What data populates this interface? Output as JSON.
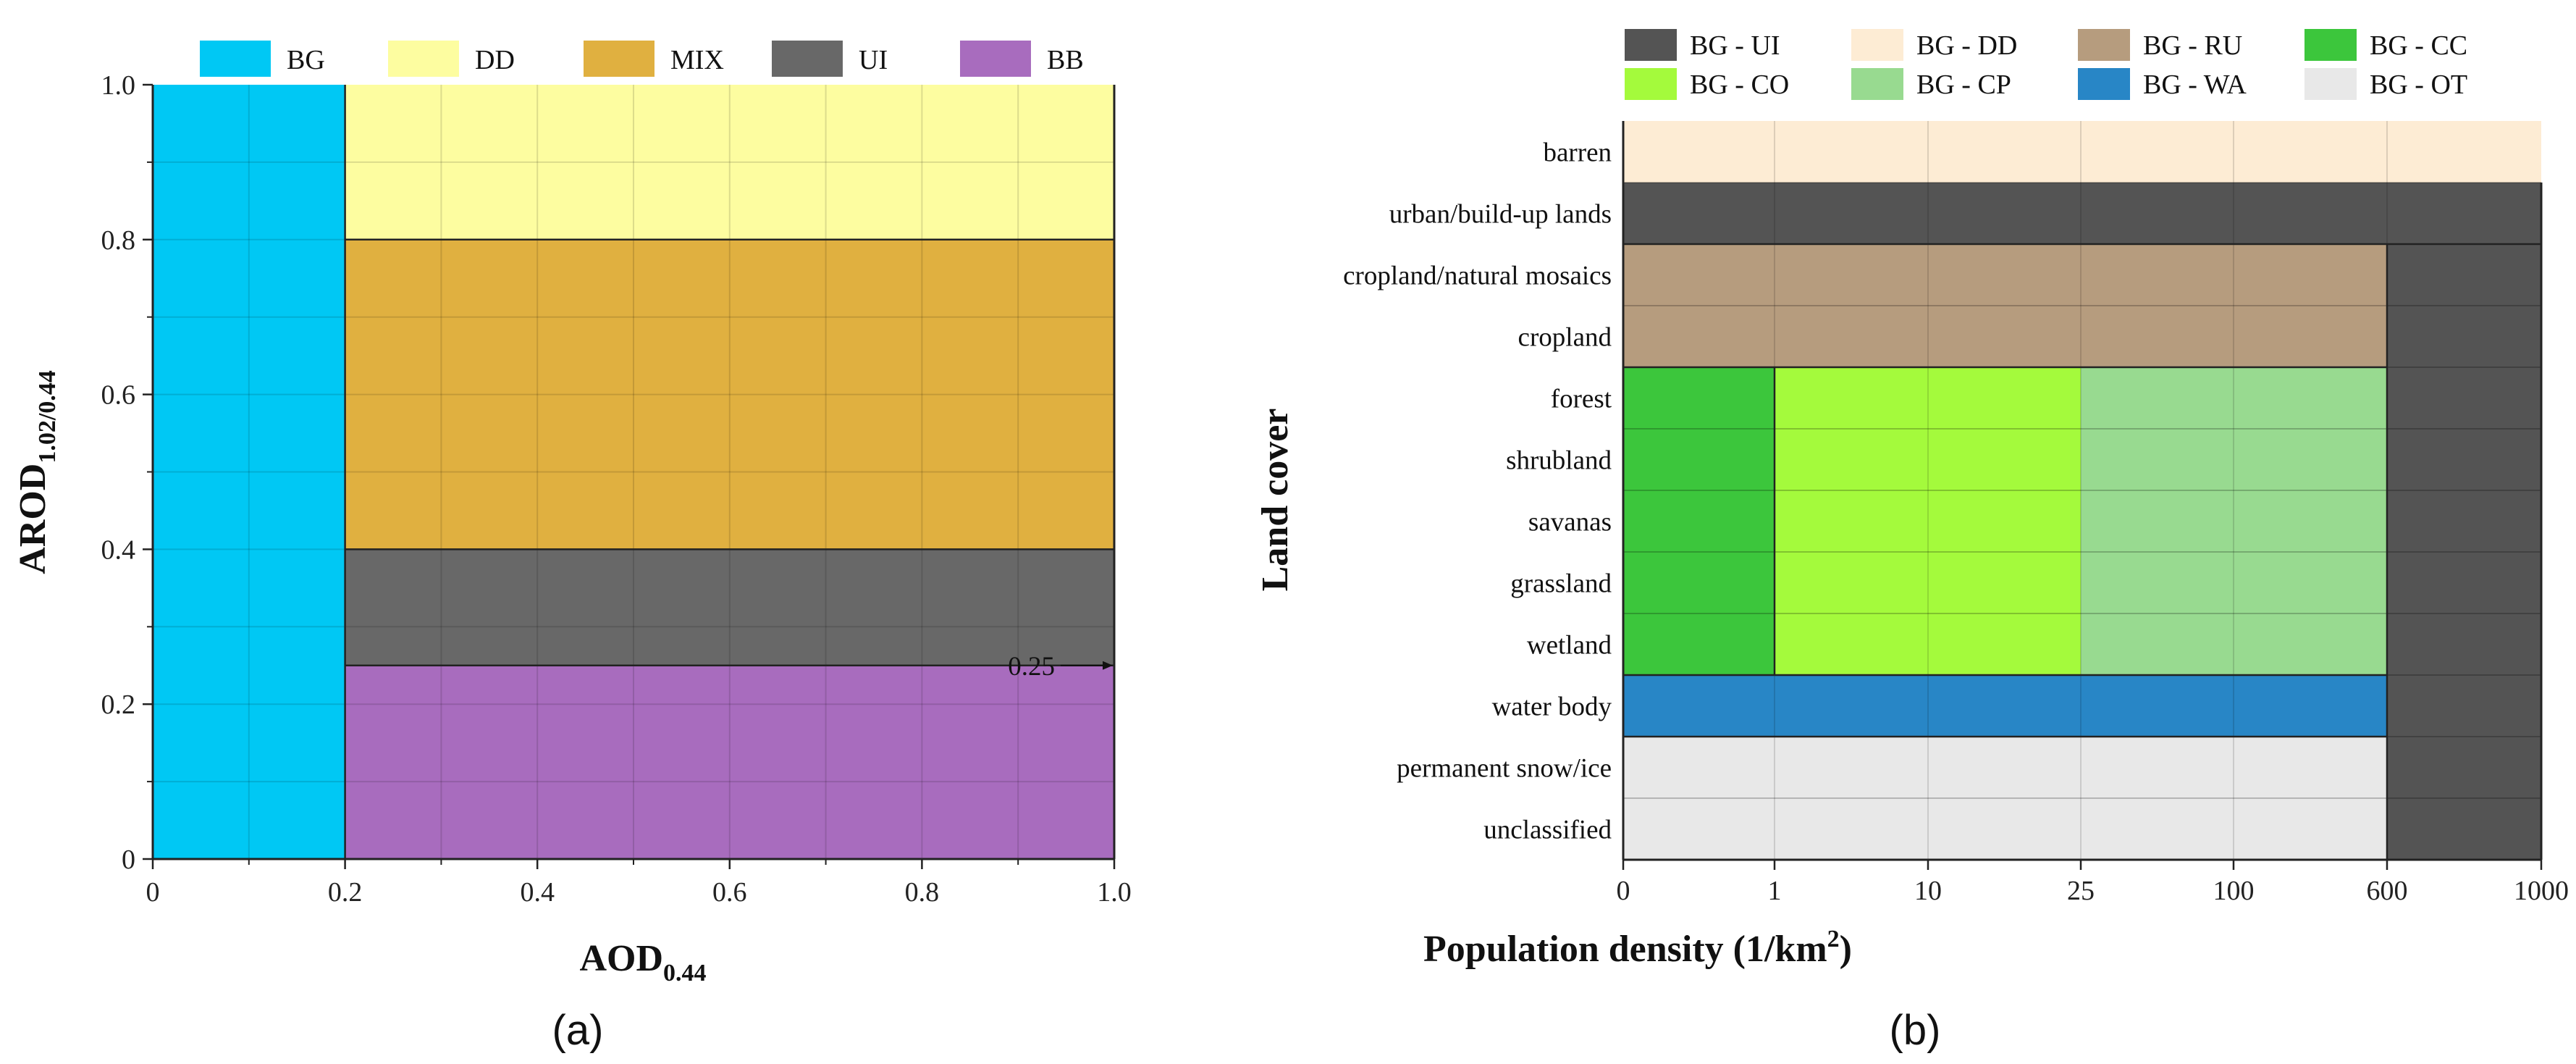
{
  "chart_data": [
    {
      "type": "heatmap",
      "panel_label": "(a)",
      "xlabel": {
        "main": "AOD",
        "sub": "0.44"
      },
      "ylabel": {
        "main": "AROD",
        "sub": "1.02/0.44"
      },
      "xlim": [
        0,
        1
      ],
      "ylim": [
        0,
        1
      ],
      "x_ticks": [
        0,
        0.2,
        0.4,
        0.6,
        0.8,
        1.0
      ],
      "x_tick_labels": [
        "0",
        "0.2",
        "0.4",
        "0.6",
        "0.8",
        "1.0"
      ],
      "y_ticks": [
        0,
        0.2,
        0.4,
        0.6,
        0.8,
        1.0
      ],
      "y_tick_labels": [
        "0",
        "0.2",
        "0.4",
        "0.6",
        "0.8",
        "1.0"
      ],
      "legend": [
        {
          "label": "BG",
          "color": "#00c8f4"
        },
        {
          "label": "DD",
          "color": "#fdfda0"
        },
        {
          "label": "MIX",
          "color": "#e0b040"
        },
        {
          "label": "UI",
          "color": "#686868"
        },
        {
          "label": "BB",
          "color": "#a86cbe"
        }
      ],
      "regions": [
        {
          "class": "BG",
          "x": [
            0,
            0.2
          ],
          "y": [
            0,
            1.0
          ]
        },
        {
          "class": "DD",
          "x": [
            0.2,
            1.0
          ],
          "y": [
            0.8,
            1.0
          ]
        },
        {
          "class": "MIX",
          "x": [
            0.2,
            1.0
          ],
          "y": [
            0.4,
            0.8
          ]
        },
        {
          "class": "UI",
          "x": [
            0.2,
            1.0
          ],
          "y": [
            0.25,
            0.4
          ]
        },
        {
          "class": "BB",
          "x": [
            0.2,
            1.0
          ],
          "y": [
            0,
            0.25
          ]
        }
      ],
      "annotation": {
        "text": "0.25",
        "y": 0.25
      }
    },
    {
      "type": "heatmap",
      "panel_label": "(b)",
      "xlabel": {
        "main": "Population density (1/km",
        "sup": "2",
        "tail": ")"
      },
      "ylabel": "Land cover",
      "x_tick_labels": [
        "0",
        "1",
        "10",
        "25",
        "100",
        "600",
        "1000"
      ],
      "y_categories": [
        "barren",
        "urban/build-up lands",
        "cropland/natural mosaics",
        "cropland",
        "forest",
        "shrubland",
        "savanas",
        "grassland",
        "wetland",
        "water body",
        "permanent snow/ice",
        "unclassified"
      ],
      "legend": [
        {
          "label": "BG - UI",
          "color": "#545454"
        },
        {
          "label": "BG - DD",
          "color": "#fdecd4"
        },
        {
          "label": "BG - RU",
          "color": "#b69c7e"
        },
        {
          "label": "BG - CC",
          "color": "#3cc63c"
        },
        {
          "label": "BG - CO",
          "color": "#a4fa3c"
        },
        {
          "label": "BG - CP",
          "color": "#98da90"
        },
        {
          "label": "BG - WA",
          "color": "#2886c6"
        },
        {
          "label": "BG - OT",
          "color": "#e8e8e8"
        }
      ],
      "regions": [
        {
          "class": "BG - DD",
          "x_idx": [
            0,
            6
          ],
          "rows": [
            0,
            1
          ]
        },
        {
          "class": "BG - UI",
          "x_idx": [
            0,
            6
          ],
          "rows": [
            1,
            2
          ]
        },
        {
          "class": "BG - RU",
          "x_idx": [
            0,
            5
          ],
          "rows": [
            2,
            4
          ]
        },
        {
          "class": "BG - CC",
          "x_idx": [
            0,
            1
          ],
          "rows": [
            4,
            9
          ]
        },
        {
          "class": "BG - CO",
          "x_idx": [
            1,
            3
          ],
          "rows": [
            4,
            9
          ]
        },
        {
          "class": "BG - CP",
          "x_idx": [
            3,
            5
          ],
          "rows": [
            4,
            9
          ]
        },
        {
          "class": "BG - WA",
          "x_idx": [
            0,
            5
          ],
          "rows": [
            9,
            10
          ]
        },
        {
          "class": "BG - OT",
          "x_idx": [
            0,
            5
          ],
          "rows": [
            10,
            12
          ]
        },
        {
          "class": "BG - UI",
          "x_idx": [
            5,
            6
          ],
          "rows": [
            2,
            12
          ]
        }
      ]
    }
  ]
}
